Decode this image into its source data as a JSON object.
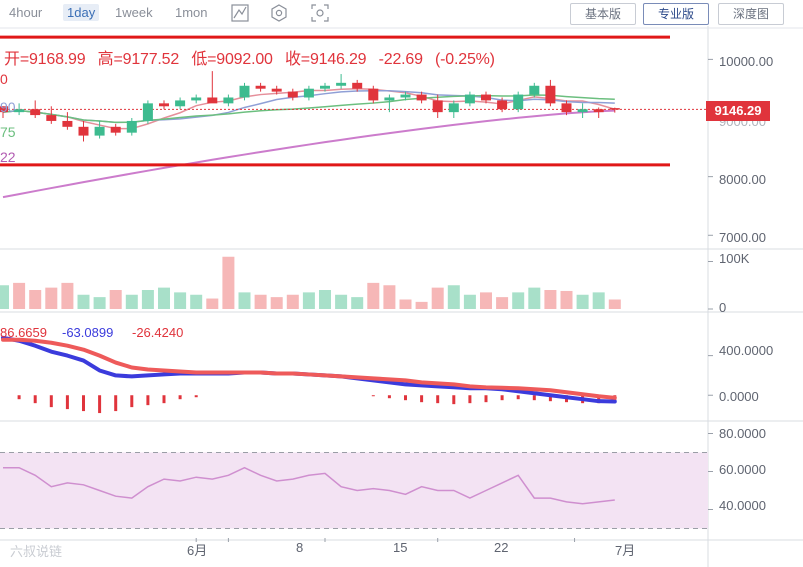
{
  "toolbar": {
    "intervals": [
      {
        "label": "4hour",
        "active": false
      },
      {
        "label": "1day",
        "active": true
      },
      {
        "label": "1week",
        "active": false
      },
      {
        "label": "1mon",
        "active": false
      }
    ],
    "tools": [
      "line-tool-icon",
      "settings-hexagon-icon",
      "screenshot-icon"
    ],
    "modes": [
      {
        "label": "基本版",
        "active": false
      },
      {
        "label": "专业版",
        "active": true
      },
      {
        "label": "深度图",
        "active": false
      }
    ]
  },
  "ohlc": {
    "open_label": "开",
    "open": "9168.99",
    "high_label": "高",
    "high": "9177.52",
    "low_label": "低",
    "low": "9092.00",
    "close_label": "收",
    "close": "9146.29",
    "change": "-22.69",
    "change_pct": "(-0.25%)"
  },
  "ma_labels": [
    {
      "text": "0",
      "color": "#e0343c"
    },
    {
      "text": "90",
      "color": "#8f9fd6"
    },
    {
      "text": "75",
      "color": "#6cbf7f"
    },
    {
      "text": "22",
      "color": "#b25bb2"
    }
  ],
  "price_axis": {
    "labels": [
      "10000.00",
      "9000.00",
      "8000.00",
      "7000.00"
    ],
    "current": "9146.29"
  },
  "volume_axis": {
    "labels": [
      "100K",
      "0"
    ]
  },
  "macd": {
    "values": [
      "86.6659",
      "-63.0899",
      "-26.4240"
    ],
    "colors": [
      "#e0343c",
      "#3b3bdc",
      "#e0343c"
    ],
    "axis": [
      "400.0000",
      "0.0000"
    ]
  },
  "rsi_axis": {
    "labels": [
      "80.0000",
      "60.0000",
      "40.0000"
    ]
  },
  "x_axis": {
    "labels": [
      "6月",
      "8",
      "15",
      "22",
      "7月"
    ]
  },
  "watermark": "六叔说链",
  "colors": {
    "up": "#3dbb8f",
    "down": "#e0343c",
    "up_vol": "#a8e0c9",
    "down_vol": "#f6b7b7",
    "rsi": "#cf8fcf",
    "rsi_band": "#f3e3f3",
    "support": "#e01818"
  },
  "chart_data": [
    {
      "type": "candlestick",
      "x": [
        "5/25",
        "5/26",
        "5/27",
        "5/28",
        "5/29",
        "5/30",
        "5/31",
        "6/1",
        "6/2",
        "6/3",
        "6/4",
        "6/5",
        "6/6",
        "6/7",
        "6/8",
        "6/9",
        "6/10",
        "6/11",
        "6/12",
        "6/13",
        "6/14",
        "6/15",
        "6/16",
        "6/17",
        "6/18",
        "6/19",
        "6/20",
        "6/21",
        "6/22",
        "6/23",
        "6/24",
        "6/25",
        "6/26",
        "6/27",
        "6/28",
        "6/29",
        "6/30",
        "7/1",
        "7/2"
      ],
      "series": [
        {
          "values": [
            [
              9200,
              9200,
              9000,
              9100
            ],
            [
              9100,
              9250,
              9050,
              9150
            ],
            [
              9150,
              9300,
              9000,
              9050
            ],
            [
              9050,
              9200,
              8900,
              8950
            ],
            [
              8950,
              9100,
              8800,
              8850
            ],
            [
              8850,
              8950,
              8600,
              8700
            ],
            [
              8700,
              8950,
              8650,
              8850
            ],
            [
              8850,
              8900,
              8700,
              8750
            ],
            [
              8750,
              9000,
              8700,
              8950
            ],
            [
              8950,
              9300,
              8900,
              9250
            ],
            [
              9250,
              9300,
              9150,
              9200
            ],
            [
              9200,
              9350,
              9150,
              9300
            ],
            [
              9300,
              9400,
              9250,
              9350
            ],
            [
              9350,
              9800,
              9300,
              9250
            ],
            [
              9250,
              9400,
              9200,
              9350
            ],
            [
              9350,
              9600,
              9300,
              9550
            ],
            [
              9550,
              9600,
              9450,
              9500
            ],
            [
              9500,
              9550,
              9400,
              9450
            ],
            [
              9450,
              9500,
              9300,
              9350
            ],
            [
              9350,
              9550,
              9300,
              9500
            ],
            [
              9500,
              9600,
              9450,
              9550
            ],
            [
              9550,
              9750,
              9500,
              9600
            ],
            [
              9600,
              9650,
              9450,
              9500
            ],
            [
              9500,
              9550,
              9250,
              9300
            ],
            [
              9300,
              9400,
              9100,
              9350
            ],
            [
              9350,
              9450,
              9300,
              9400
            ],
            [
              9400,
              9450,
              9250,
              9300
            ],
            [
              9300,
              9400,
              9000,
              9100
            ],
            [
              9100,
              9300,
              9000,
              9250
            ],
            [
              9250,
              9450,
              9200,
              9400
            ],
            [
              9400,
              9450,
              9250,
              9300
            ],
            [
              9300,
              9350,
              9100,
              9150
            ],
            [
              9150,
              9450,
              9100,
              9400
            ],
            [
              9400,
              9600,
              9350,
              9550
            ],
            [
              9550,
              9650,
              9200,
              9250
            ],
            [
              9250,
              9300,
              9050,
              9100
            ],
            [
              9100,
              9250,
              9000,
              9150
            ],
            [
              9150,
              9180,
              9000,
              9100
            ],
            [
              9168.99,
              9177.52,
              9092,
              9146.29
            ]
          ]
        }
      ],
      "ylim": [
        6800,
        10450
      ],
      "support_levels": [
        10380,
        8200
      ]
    },
    {
      "type": "bar",
      "x": [
        "5/25",
        "5/26",
        "5/27",
        "5/28",
        "5/29",
        "5/30",
        "5/31",
        "6/1",
        "6/2",
        "6/3",
        "6/4",
        "6/5",
        "6/6",
        "6/7",
        "6/8",
        "6/9",
        "6/10",
        "6/11",
        "6/12",
        "6/13",
        "6/14",
        "6/15",
        "6/16",
        "6/17",
        "6/18",
        "6/19",
        "6/20",
        "6/21",
        "6/22",
        "6/23",
        "6/24",
        "6/25",
        "6/26",
        "6/27",
        "6/28",
        "6/29",
        "6/30",
        "7/1",
        "7/2"
      ],
      "values": [
        50,
        55,
        40,
        45,
        55,
        30,
        25,
        40,
        30,
        40,
        45,
        35,
        30,
        22,
        110,
        35,
        30,
        25,
        30,
        35,
        40,
        30,
        25,
        55,
        50,
        20,
        15,
        45,
        50,
        30,
        35,
        25,
        35,
        45,
        40,
        38,
        30,
        35,
        20
      ],
      "up": [
        1,
        0,
        0,
        0,
        0,
        1,
        1,
        0,
        1,
        1,
        1,
        1,
        1,
        0,
        0,
        1,
        0,
        0,
        0,
        1,
        1,
        1,
        1,
        0,
        0,
        0,
        0,
        0,
        1,
        1,
        0,
        0,
        1,
        1,
        0,
        0,
        1,
        1,
        0
      ],
      "ylim": [
        0,
        120
      ]
    },
    {
      "type": "line",
      "x": [
        "5/25",
        "5/26",
        "5/27",
        "5/28",
        "5/29",
        "5/30",
        "5/31",
        "6/1",
        "6/2",
        "6/3",
        "6/4",
        "6/5",
        "6/6",
        "6/7",
        "6/8",
        "6/9",
        "6/10",
        "6/11",
        "6/12",
        "6/13",
        "6/14",
        "6/15",
        "6/16",
        "6/17",
        "6/18",
        "6/19",
        "6/20",
        "6/21",
        "6/22",
        "6/23",
        "6/24",
        "6/25",
        "6/26",
        "6/27",
        "6/28",
        "6/29",
        "6/30",
        "7/1",
        "7/2"
      ],
      "series": [
        {
          "name": "DIF",
          "values": [
            580,
            550,
            500,
            440,
            400,
            350,
            250,
            200,
            190,
            200,
            210,
            220,
            220,
            220,
            220,
            230,
            230,
            220,
            220,
            210,
            200,
            190,
            170,
            150,
            130,
            110,
            100,
            90,
            80,
            70,
            70,
            60,
            40,
            20,
            0,
            -20,
            -40,
            -60,
            -63
          ]
        },
        {
          "name": "DEA",
          "values": [
            560,
            560,
            550,
            530,
            500,
            460,
            400,
            330,
            280,
            260,
            250,
            240,
            230,
            230,
            230,
            230,
            230,
            220,
            220,
            210,
            200,
            190,
            180,
            170,
            160,
            150,
            130,
            120,
            110,
            90,
            80,
            75,
            70,
            60,
            50,
            30,
            10,
            -10,
            -26
          ]
        }
      ],
      "histogram": [
        0,
        -40,
        -80,
        -120,
        -140,
        -160,
        -180,
        -160,
        -120,
        -100,
        -80,
        -40,
        -20,
        0,
        0,
        0,
        0,
        0,
        0,
        0,
        0,
        0,
        0,
        -10,
        -30,
        -50,
        -70,
        -80,
        -90,
        -80,
        -70,
        -50,
        -40,
        -50,
        -60,
        -70,
        -80,
        -80,
        -70
      ],
      "ylim": [
        -250,
        800
      ]
    },
    {
      "type": "line",
      "x": [
        "5/25",
        "5/26",
        "5/27",
        "5/28",
        "5/29",
        "5/30",
        "5/31",
        "6/1",
        "6/2",
        "6/3",
        "6/4",
        "6/5",
        "6/6",
        "6/7",
        "6/8",
        "6/9",
        "6/10",
        "6/11",
        "6/12",
        "6/13",
        "6/14",
        "6/15",
        "6/16",
        "6/17",
        "6/18",
        "6/19",
        "6/20",
        "6/21",
        "6/22",
        "6/23",
        "6/24",
        "6/25",
        "6/26",
        "6/27",
        "6/28",
        "6/29",
        "6/30",
        "7/1",
        "7/2"
      ],
      "series": [
        {
          "name": "RSI",
          "values": [
            62,
            62,
            58,
            52,
            54,
            53,
            50,
            47,
            46,
            52,
            56,
            55,
            57,
            56,
            58,
            62,
            58,
            55,
            56,
            58,
            59,
            52,
            50,
            51,
            50,
            48,
            52,
            50,
            50,
            46,
            50,
            54,
            58,
            46,
            46,
            44,
            43,
            44,
            45
          ]
        }
      ],
      "ylim": [
        25,
        85
      ],
      "bands": [
        70,
        30
      ]
    }
  ]
}
